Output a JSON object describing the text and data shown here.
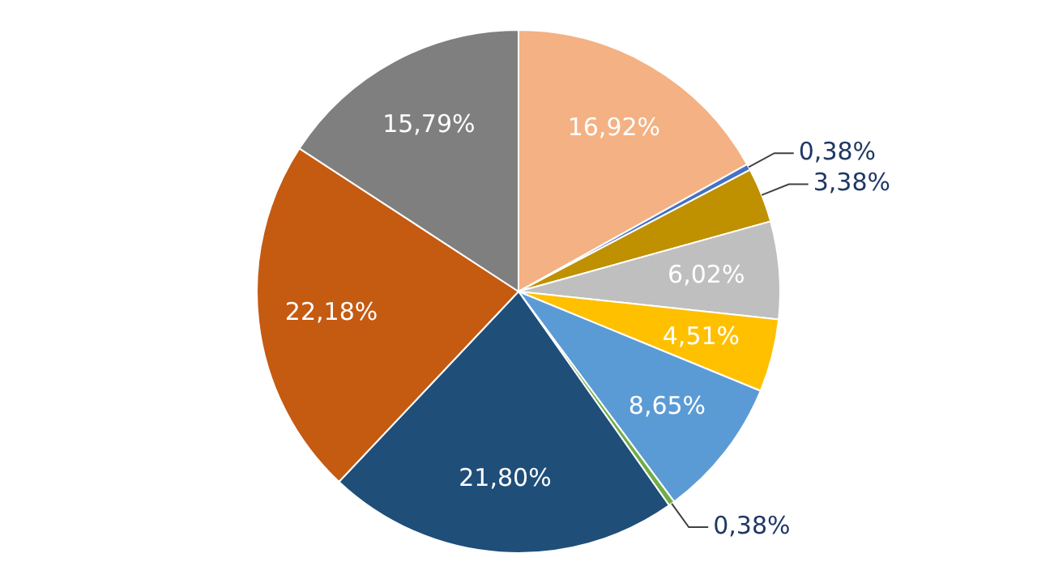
{
  "chart_data": {
    "type": "pie",
    "categories": [
      null,
      null,
      null,
      null,
      null,
      null,
      null,
      null,
      null,
      null
    ],
    "values": [
      16.92,
      0.38,
      3.38,
      6.02,
      4.51,
      8.65,
      0.38,
      21.8,
      22.18,
      15.79
    ],
    "value_labels": [
      "16,92%",
      "0,38%",
      "3,38%",
      "6,02%",
      "4,51%",
      "8,65%",
      "0,38%",
      "21,80%",
      "22,18%",
      "15,79%"
    ],
    "colors": [
      "#f4b183",
      "#4472c4",
      "#bf9000",
      "#bfbfbf",
      "#ffc000",
      "#5b9bd5",
      "#70ad47",
      "#1f4e79",
      "#c55a11",
      "#7f7f7f"
    ],
    "legend": false
  }
}
